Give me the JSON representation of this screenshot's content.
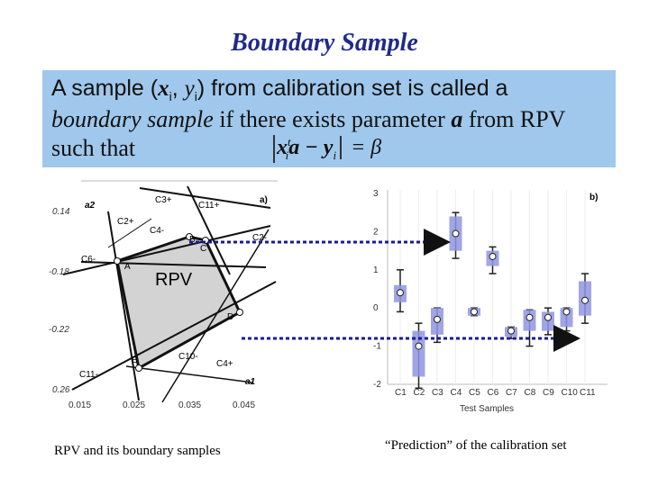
{
  "slide": {
    "title": "Boundary Sample",
    "definition": {
      "line1_pre": "A sample (",
      "line1_x": "x",
      "line1_i1": "i",
      "line1_comma": ", ",
      "line1_y": "y",
      "line1_i2": "i",
      "line1_post": ") from calibration set is called a",
      "line2_em": "boundary sample",
      "line2_mid": " if there exists parameter ",
      "line2_a": "a",
      "line2_post": " from RPV",
      "line3": "such that",
      "formula_x": "x",
      "formula_sub": "i",
      "formula_sup": "t",
      "formula_rest": "a − y",
      "formula_sub2": "i",
      "formula_eq": " = β"
    },
    "caption_left": "RPV and its boundary samples",
    "caption_right": "“Prediction” of the calibration set"
  },
  "left_plot": {
    "panel_label": "a)",
    "region_label": "RPV",
    "y_ticks": [
      "0.14",
      "-0.18",
      "-0.22",
      "0.26"
    ],
    "x_ticks": [
      "0.015",
      "0.025",
      "0.035",
      "0.045"
    ],
    "axis_labels": [
      "a2",
      "a1"
    ],
    "line_labels": [
      "C3+",
      "C11+",
      "C2+",
      "C4-",
      "C2-",
      "C6-",
      "C11-",
      "C10-",
      "C4+"
    ],
    "vertex_labels": [
      "A",
      "B",
      "C",
      "D",
      "E"
    ]
  },
  "right_plot": {
    "panel_label": "b)",
    "x_title": "Test Samples",
    "x_ticks": [
      "C1",
      "C2",
      "C3",
      "C4",
      "C5",
      "C6",
      "C7",
      "C8",
      "C9",
      "C10",
      "C11"
    ],
    "y_ticks": [
      "3",
      "2",
      "1",
      "0",
      "-1",
      "-2"
    ]
  },
  "colors": {
    "title": "#1f2a8a",
    "definition_bg": "#9fc8ec",
    "rpv_fill": "#d3d3d3",
    "arrow": "#1a1a9a",
    "box_fill": "#8f95e0"
  },
  "chart_data": {
    "type": "box",
    "categories": [
      "C1",
      "C2",
      "C3",
      "C4",
      "C5",
      "C6",
      "C7",
      "C8",
      "C9",
      "C10",
      "C11"
    ],
    "xlabel": "Test Samples",
    "ylabel": "",
    "ylim": [
      -2,
      3
    ],
    "series": [
      {
        "category": "C1",
        "median": 0.4,
        "q1": 0.15,
        "q3": 0.6,
        "min": -0.1,
        "max": 1.0
      },
      {
        "category": "C2",
        "median": -1.0,
        "q1": -1.8,
        "q3": -0.6,
        "min": -2.1,
        "max": -0.4
      },
      {
        "category": "C3",
        "median": -0.3,
        "q1": -0.7,
        "q3": 0.0,
        "min": -0.9,
        "max": 0.0
      },
      {
        "category": "C4",
        "median": 1.95,
        "q1": 1.5,
        "q3": 2.4,
        "min": 1.3,
        "max": 2.5
      },
      {
        "category": "C5",
        "median": -0.1,
        "q1": -0.2,
        "q3": 0.0,
        "min": -0.2,
        "max": 0.0
      },
      {
        "category": "C6",
        "median": 1.35,
        "q1": 1.1,
        "q3": 1.5,
        "min": 0.9,
        "max": 1.6
      },
      {
        "category": "C7",
        "median": -0.6,
        "q1": -0.75,
        "q3": -0.5,
        "min": -0.8,
        "max": -0.5
      },
      {
        "category": "C8",
        "median": -0.25,
        "q1": -0.6,
        "q3": -0.05,
        "min": -1.0,
        "max": -0.05
      },
      {
        "category": "C9",
        "median": -0.25,
        "q1": -0.6,
        "q3": -0.1,
        "min": -0.7,
        "max": 0.0
      },
      {
        "category": "C10",
        "median": -0.1,
        "q1": -0.5,
        "q3": 0.0,
        "min": -0.6,
        "max": 0.0
      },
      {
        "category": "C11",
        "median": 0.2,
        "q1": -0.2,
        "q3": 0.7,
        "min": -0.4,
        "max": 0.9
      }
    ]
  }
}
